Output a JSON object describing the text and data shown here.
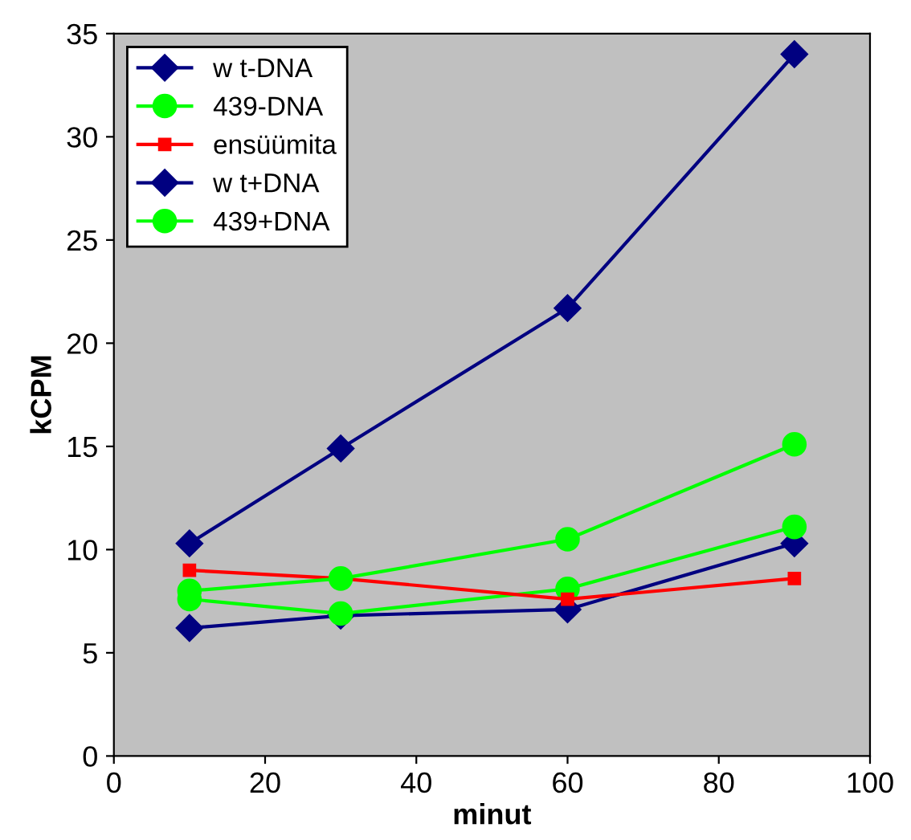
{
  "chart_data": {
    "type": "line",
    "xlabel": "minut",
    "ylabel": "kCPM",
    "x": [
      10,
      30,
      60,
      90
    ],
    "series": [
      {
        "name": "w t-DNA",
        "color": "#000080",
        "marker": "diamond",
        "values": [
          6.2,
          6.8,
          7.1,
          10.3
        ]
      },
      {
        "name": "439-DNA",
        "color": "#00ff00",
        "marker": "circle",
        "values": [
          7.6,
          6.9,
          8.1,
          11.1
        ]
      },
      {
        "name": "ensüümita",
        "color": "#ff0000",
        "marker": "square",
        "values": [
          9.0,
          8.6,
          7.6,
          8.6
        ]
      },
      {
        "name": "w t+DNA",
        "color": "#000080",
        "marker": "diamond",
        "values": [
          10.3,
          14.9,
          21.7,
          34.0
        ]
      },
      {
        "name": "439+DNA",
        "color": "#00ff00",
        "marker": "circle",
        "values": [
          8.0,
          8.6,
          10.5,
          15.1
        ]
      }
    ],
    "xlim": [
      0,
      100
    ],
    "xticks": [
      0,
      20,
      40,
      60,
      80,
      100
    ],
    "ylim": [
      0,
      35
    ],
    "yticks": [
      0,
      5,
      10,
      15,
      20,
      25,
      30,
      35
    ],
    "grid": false,
    "legend": "top left"
  }
}
